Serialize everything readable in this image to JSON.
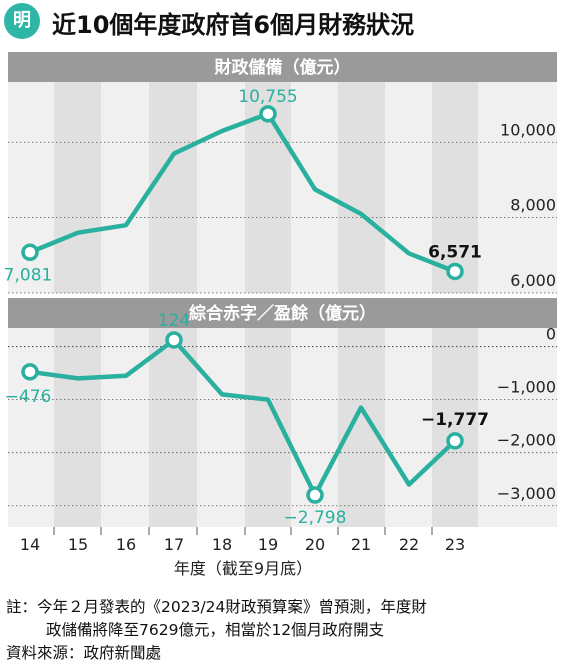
{
  "header": {
    "logo_text": "明",
    "title": "近10個年度政府首6個月財務狀況"
  },
  "colors": {
    "line": "#2ab09e",
    "panel": "#f0f0f0",
    "band": "#e0e0e0",
    "title_bar": "#9a9a9a"
  },
  "chart_data": [
    {
      "type": "line",
      "title": "財政儲備（億元）",
      "x": [
        "14",
        "15",
        "16",
        "17",
        "18",
        "19",
        "20",
        "21",
        "22",
        "23"
      ],
      "values": [
        7081,
        7600,
        7800,
        9700,
        10300,
        10755,
        8750,
        8100,
        7050,
        6571
      ],
      "ylim": [
        6000,
        11600
      ],
      "yticks": [
        6000,
        8000,
        10000
      ],
      "ytick_labels": [
        "6,000",
        "8,000",
        "10,000"
      ],
      "point_labels": [
        {
          "index": 0,
          "text": "7,081"
        },
        {
          "index": 5,
          "text": "10,755"
        },
        {
          "index": 9,
          "text": "6,571"
        }
      ]
    },
    {
      "type": "line",
      "title": "綜合赤字／盈餘（億元）",
      "x": [
        "14",
        "15",
        "16",
        "17",
        "18",
        "19",
        "20",
        "21",
        "22",
        "23"
      ],
      "values": [
        -476,
        -600,
        -550,
        124,
        -900,
        -1000,
        -2798,
        -1150,
        -2600,
        -1777
      ],
      "ylim": [
        -3400,
        350
      ],
      "yticks": [
        0,
        -1000,
        -2000,
        -3000
      ],
      "ytick_labels": [
        "0",
        "−1,000",
        "−2,000",
        "−3,000"
      ],
      "point_labels": [
        {
          "index": 0,
          "text": "−476"
        },
        {
          "index": 3,
          "text": "124"
        },
        {
          "index": 6,
          "text": "−2,798"
        },
        {
          "index": 9,
          "text": "−1,777"
        }
      ]
    }
  ],
  "x_axis": {
    "labels": [
      "14",
      "15",
      "16",
      "17",
      "18",
      "19",
      "20",
      "21",
      "22",
      "23"
    ],
    "title": "年度（截至9月底）"
  },
  "notes": {
    "line1": "註：今年２月發表的《2023/24財政預算案》曾預測，年度財",
    "line2": "政儲備將降至7629億元，相當於12個月政府開支",
    "source": "資料來源：政府新聞處"
  }
}
